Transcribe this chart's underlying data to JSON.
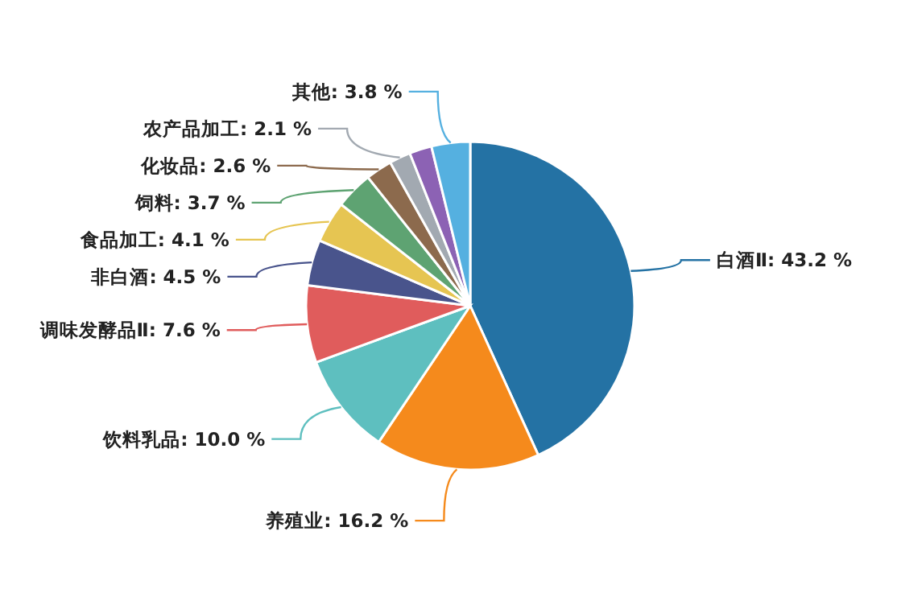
{
  "chart_data": {
    "type": "pie",
    "categories": [
      "白酒Ⅱ",
      "养殖业",
      "饮料乳品",
      "调味发酵品Ⅱ",
      "非白酒",
      "食品加工",
      "饲料",
      "化妆品",
      "农产品加工",
      null,
      "其他"
    ],
    "values": [
      43.2,
      16.2,
      10.0,
      7.6,
      4.5,
      4.1,
      3.7,
      2.6,
      2.1,
      2.2,
      3.8
    ],
    "value_labels": [
      "43.2 %",
      "16.2 %",
      "10.0 %",
      "7.6 %",
      "4.5 %",
      "4.1 %",
      "3.7 %",
      "2.6 %",
      "2.1 %",
      null,
      "3.8 %"
    ],
    "colors": [
      "#2472a4",
      "#f58a1c",
      "#5ebfbf",
      "#e05c5c",
      "#49548c",
      "#e6c552",
      "#5ea372",
      "#8c6a4d",
      "#a2a9b1",
      "#8c62b4",
      "#55b0e0"
    ]
  }
}
